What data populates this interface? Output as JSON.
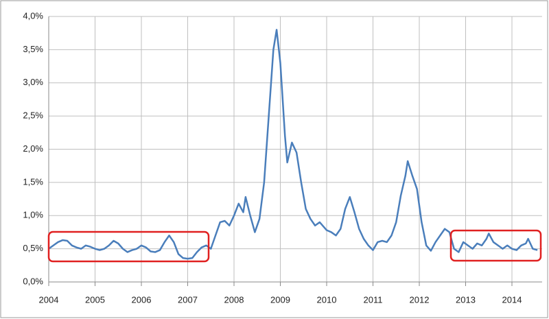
{
  "chart_data": {
    "type": "line",
    "x": [
      2004.0,
      2004.1,
      2004.2,
      2004.3,
      2004.4,
      2004.5,
      2004.6,
      2004.7,
      2004.8,
      2004.9,
      2005.0,
      2005.1,
      2005.2,
      2005.3,
      2005.4,
      2005.5,
      2005.6,
      2005.7,
      2005.8,
      2005.9,
      2006.0,
      2006.1,
      2006.2,
      2006.3,
      2006.4,
      2006.5,
      2006.6,
      2006.7,
      2006.8,
      2006.9,
      2007.0,
      2007.1,
      2007.2,
      2007.3,
      2007.4,
      2007.5,
      2007.6,
      2007.7,
      2007.8,
      2007.9,
      2008.0,
      2008.1,
      2008.2,
      2008.25,
      2008.35,
      2008.45,
      2008.55,
      2008.65,
      2008.75,
      2008.85,
      2008.92,
      2009.0,
      2009.1,
      2009.15,
      2009.25,
      2009.35,
      2009.45,
      2009.55,
      2009.65,
      2009.75,
      2009.85,
      2010.0,
      2010.1,
      2010.2,
      2010.3,
      2010.4,
      2010.5,
      2010.6,
      2010.7,
      2010.8,
      2010.9,
      2011.0,
      2011.1,
      2011.2,
      2011.3,
      2011.4,
      2011.5,
      2011.6,
      2011.7,
      2011.75,
      2011.85,
      2011.95,
      2012.05,
      2012.15,
      2012.25,
      2012.35,
      2012.45,
      2012.55,
      2012.65,
      2012.75,
      2012.85,
      2012.95,
      2013.05,
      2013.15,
      2013.25,
      2013.35,
      2013.45,
      2013.5,
      2013.6,
      2013.7,
      2013.8,
      2013.9,
      2014.0,
      2014.1,
      2014.2,
      2014.3,
      2014.35,
      2014.45,
      2014.55
    ],
    "series": [
      {
        "color": "#4a7ebb",
        "values": [
          0.5,
          0.55,
          0.6,
          0.63,
          0.62,
          0.55,
          0.52,
          0.5,
          0.55,
          0.53,
          0.5,
          0.48,
          0.5,
          0.55,
          0.62,
          0.58,
          0.5,
          0.45,
          0.48,
          0.5,
          0.55,
          0.52,
          0.46,
          0.45,
          0.48,
          0.6,
          0.7,
          0.6,
          0.42,
          0.36,
          0.35,
          0.36,
          0.45,
          0.52,
          0.55,
          0.5,
          0.7,
          0.9,
          0.92,
          0.85,
          1.0,
          1.18,
          1.05,
          1.28,
          1.0,
          0.75,
          0.95,
          1.5,
          2.5,
          3.5,
          3.8,
          3.3,
          2.2,
          1.8,
          2.1,
          1.95,
          1.5,
          1.1,
          0.95,
          0.85,
          0.9,
          0.78,
          0.75,
          0.7,
          0.8,
          1.1,
          1.28,
          1.05,
          0.8,
          0.65,
          0.55,
          0.48,
          0.6,
          0.62,
          0.6,
          0.7,
          0.9,
          1.3,
          1.6,
          1.82,
          1.6,
          1.4,
          0.9,
          0.55,
          0.47,
          0.6,
          0.7,
          0.8,
          0.75,
          0.5,
          0.45,
          0.6,
          0.55,
          0.5,
          0.58,
          0.55,
          0.65,
          0.73,
          0.6,
          0.55,
          0.5,
          0.55,
          0.5,
          0.48,
          0.55,
          0.58,
          0.65,
          0.5,
          0.48
        ]
      }
    ],
    "xlim": [
      2004,
      2014.65
    ],
    "xticks": [
      2004,
      2005,
      2006,
      2007,
      2008,
      2009,
      2010,
      2011,
      2012,
      2013,
      2014
    ],
    "ylim": [
      0,
      4
    ],
    "yticks": [
      {
        "value": 0,
        "label": "0,0%"
      },
      {
        "value": 0.5,
        "label": "0,5%"
      },
      {
        "value": 1,
        "label": "1,0%"
      },
      {
        "value": 1.5,
        "label": "1,5%"
      },
      {
        "value": 2,
        "label": "2,0%"
      },
      {
        "value": 2.5,
        "label": "2,5%"
      },
      {
        "value": 3,
        "label": "3,0%"
      },
      {
        "value": 3.5,
        "label": "3,5%"
      },
      {
        "value": 4,
        "label": "4,0%"
      }
    ],
    "grid": true
  }
}
